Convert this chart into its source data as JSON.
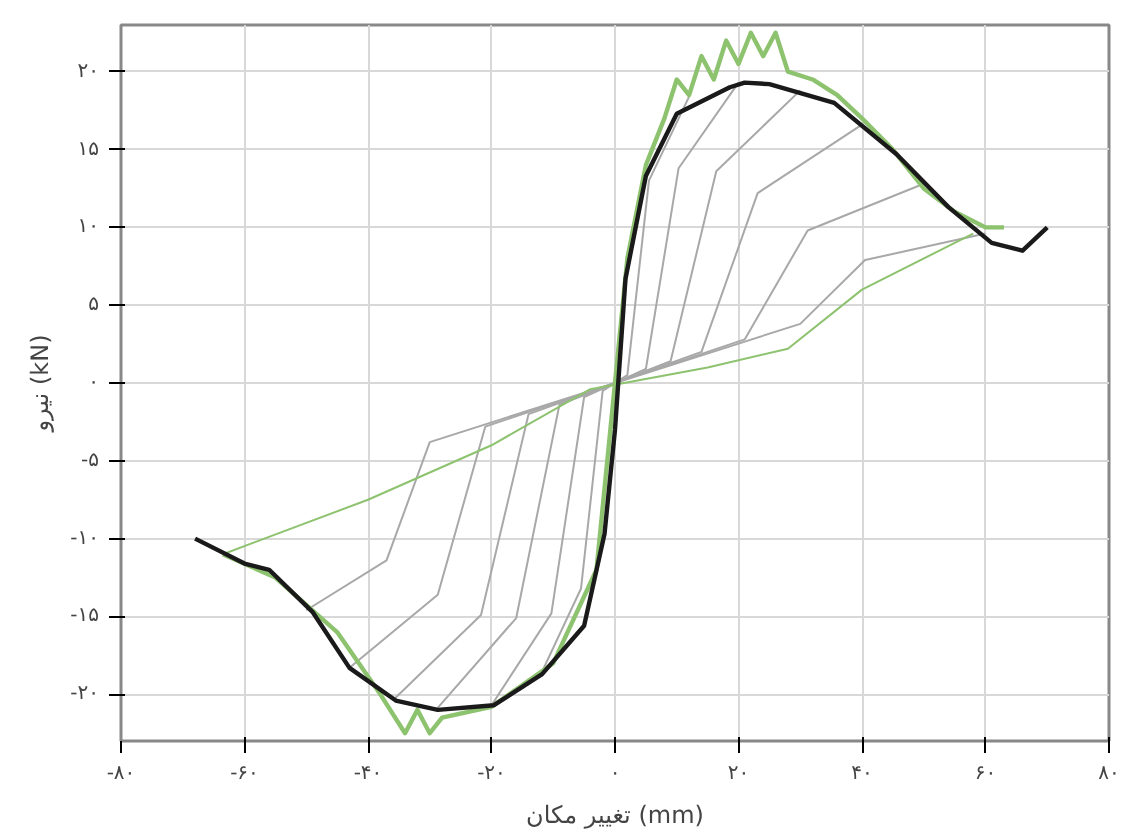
{
  "chart_data": {
    "type": "line",
    "xlabel": "تغییر مکان (mm)",
    "ylabel": "نیرو (kN)",
    "xlim": [
      -80,
      80
    ],
    "ylim": [
      -23,
      23
    ],
    "xticks": [
      {
        "value": -80,
        "label": "-۸۰"
      },
      {
        "value": -60,
        "label": "-۶۰"
      },
      {
        "value": -40,
        "label": "-۴۰"
      },
      {
        "value": -20,
        "label": "-۲۰"
      },
      {
        "value": 0,
        "label": "۰"
      },
      {
        "value": 20,
        "label": "۲۰"
      },
      {
        "value": 40,
        "label": "۴۰"
      },
      {
        "value": 60,
        "label": "۶۰"
      },
      {
        "value": 80,
        "label": "۸۰"
      }
    ],
    "yticks": [
      {
        "value": -20,
        "label": "-۲۰"
      },
      {
        "value": -15,
        "label": "-۱۵"
      },
      {
        "value": -10,
        "label": "-۱۰"
      },
      {
        "value": -5,
        "label": "-۵"
      },
      {
        "value": 0,
        "label": "۰"
      },
      {
        "value": 5,
        "label": "۵"
      },
      {
        "value": 10,
        "label": "۱۰"
      },
      {
        "value": 15,
        "label": "۱۵"
      },
      {
        "value": 20,
        "label": "۲۰"
      }
    ],
    "grid": true,
    "marker": "none",
    "line_style": "solid",
    "series": [
      {
        "color": "#a8a8a8",
        "x": [
          -12,
          -5.5,
          -2,
          2,
          5.5,
          12
        ],
        "values": [
          -18.7,
          -13.2,
          -0.5,
          0.5,
          13.0,
          18.4
        ]
      },
      {
        "color": "#a8a8a8",
        "x": [
          -20,
          -10.3,
          -5,
          5,
          10.3,
          20
        ],
        "values": [
          -20.7,
          -14.8,
          -0.9,
          0.9,
          13.8,
          19.3
        ]
      },
      {
        "color": "#a8a8a8",
        "x": [
          -29,
          -16,
          -9,
          9,
          16.4,
          30
        ],
        "values": [
          -21,
          -15.1,
          -1.4,
          1.4,
          13.6,
          18.8
        ]
      },
      {
        "color": "#a8a8a8",
        "x": [
          -36,
          -21.7,
          -14,
          14,
          23.1,
          40
        ],
        "values": [
          -20.4,
          -14.9,
          -2,
          2,
          12.2,
          16.6
        ]
      },
      {
        "color": "#a8a8a8",
        "x": [
          -43,
          -28.7,
          -21,
          21,
          31.2,
          50
        ],
        "values": [
          -18.3,
          -13.6,
          -2.8,
          2.8,
          9.8,
          12.8
        ]
      },
      {
        "color": "#a8a8a8",
        "x": [
          -50,
          -37,
          -30,
          30,
          40.5,
          60
        ],
        "values": [
          -14.6,
          -11.4,
          -3.8,
          3.8,
          7.9,
          9.6
        ]
      },
      {
        "color": "#8dc26f",
        "x": [
          -63.5,
          -55,
          -45,
          -38,
          -34,
          -32,
          -30,
          -28,
          -20,
          -10,
          -3,
          0,
          2,
          5,
          8,
          10,
          12,
          14,
          16,
          18,
          20,
          22,
          24,
          26,
          28,
          32,
          36,
          40,
          45,
          50,
          55,
          60,
          63
        ],
        "values": [
          -11,
          -12.5,
          -16,
          -20,
          -22.5,
          -21,
          -22.5,
          -21.5,
          -20.8,
          -18,
          -12,
          0,
          8,
          14,
          17,
          19.5,
          18.5,
          21,
          19.5,
          22,
          20.5,
          22.5,
          21,
          22.5,
          20,
          19.5,
          18.5,
          17,
          15,
          12.5,
          11,
          10,
          10
        ]
      },
      {
        "color": "#8dc26f",
        "x": [
          -63.5,
          -40,
          -20,
          -4,
          15,
          28,
          40,
          58
        ],
        "values": [
          -11,
          -7.5,
          -4,
          -0.4,
          1,
          2.2,
          6,
          9.6
        ]
      },
      {
        "color": "#1a1a1a",
        "x": [
          -68,
          -60,
          -56,
          -49,
          -43,
          -35.5,
          -28.7,
          -19.6,
          -11.8,
          -5,
          -1.7,
          0,
          1.7,
          5,
          10,
          18.6,
          21,
          25,
          35.5,
          45.6,
          54,
          61,
          66,
          70
        ],
        "values": [
          -10,
          -11.6,
          -12,
          -14.7,
          -18.3,
          -20.4,
          -21,
          -20.7,
          -18.7,
          -15.6,
          -9.7,
          -3,
          6.7,
          13.3,
          17.3,
          19,
          19.3,
          19.2,
          18,
          14.7,
          11.3,
          9,
          8.5,
          10
        ]
      }
    ]
  }
}
